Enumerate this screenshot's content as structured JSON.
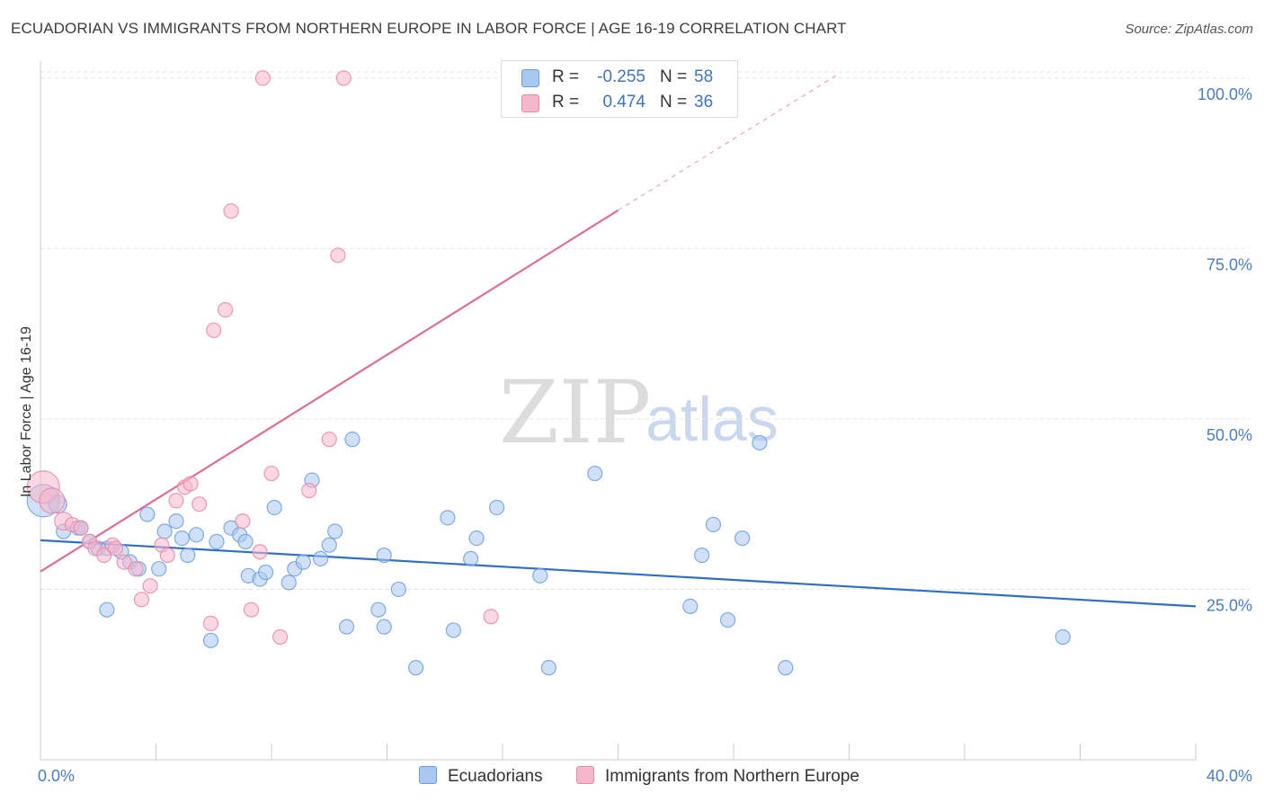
{
  "title": "ECUADORIAN VS IMMIGRANTS FROM NORTHERN EUROPE IN LABOR FORCE | AGE 16-19 CORRELATION CHART",
  "source": "Source: ZipAtlas.com",
  "watermark": {
    "zip": "ZIP",
    "atlas": "atlas"
  },
  "legend": {
    "rows": [
      {
        "r_label": "R =",
        "r_value": "-0.255",
        "n_label": "N =",
        "n_value": "58",
        "color": "#a9c8f0"
      },
      {
        "r_label": "R =",
        "r_value": "0.474",
        "n_label": "N =",
        "n_value": "36",
        "color": "#f6b7cb"
      }
    ]
  },
  "bottom_legend": [
    {
      "label": "Ecuadorians",
      "color": "#a9c8f0"
    },
    {
      "label": "Immigrants from Northern Europe",
      "color": "#f6b7cb"
    }
  ],
  "chart_data": {
    "type": "scatter",
    "ylabel": "In Labor Force | Age 16-19",
    "xlim": [
      0,
      40
    ],
    "ylim": [
      0,
      100
    ],
    "x_tick_labels": [
      "0.0%",
      "40.0%"
    ],
    "y_ticks": [
      25,
      50,
      75,
      100
    ],
    "y_tick_labels": [
      "25.0%",
      "50.0%",
      "75.0%",
      "100.0%"
    ],
    "grid": true,
    "series": [
      {
        "name": "Ecuadorians",
        "color": "#6b9de0",
        "fill": "#a9c8f0",
        "trend": {
          "x0": 0,
          "y0": 32.2,
          "x1": 40,
          "y1": 22.5
        },
        "points": [
          [
            0.1,
            38,
            18
          ],
          [
            0.6,
            37.5,
            10
          ],
          [
            0.8,
            33.5,
            8
          ],
          [
            1.3,
            34,
            8
          ],
          [
            1.4,
            34,
            8
          ],
          [
            1.7,
            32,
            8
          ],
          [
            2.0,
            31,
            8
          ],
          [
            2.3,
            31,
            8
          ],
          [
            2.8,
            30.5,
            8
          ],
          [
            3.1,
            29,
            8
          ],
          [
            2.3,
            22,
            8
          ],
          [
            3.4,
            28,
            8
          ],
          [
            3.7,
            36,
            8
          ],
          [
            4.1,
            28,
            8
          ],
          [
            4.3,
            33.5,
            8
          ],
          [
            4.7,
            35,
            8
          ],
          [
            4.9,
            32.5,
            8
          ],
          [
            5.1,
            30,
            8
          ],
          [
            5.4,
            33,
            8
          ],
          [
            5.9,
            17.5,
            8
          ],
          [
            6.1,
            32,
            8
          ],
          [
            6.6,
            34,
            8
          ],
          [
            6.9,
            33,
            8
          ],
          [
            7.1,
            32,
            8
          ],
          [
            7.2,
            27,
            8
          ],
          [
            7.6,
            26.5,
            8
          ],
          [
            7.8,
            27.5,
            8
          ],
          [
            8.1,
            37,
            8
          ],
          [
            8.6,
            26,
            8
          ],
          [
            8.8,
            28,
            8
          ],
          [
            9.1,
            29,
            8
          ],
          [
            9.4,
            41,
            8
          ],
          [
            9.7,
            29.5,
            8
          ],
          [
            10.0,
            31.5,
            8
          ],
          [
            10.2,
            33.5,
            8
          ],
          [
            10.6,
            19.5,
            8
          ],
          [
            10.8,
            47,
            8
          ],
          [
            11.9,
            30,
            8
          ],
          [
            11.7,
            22,
            8
          ],
          [
            11.9,
            19.5,
            8
          ],
          [
            12.4,
            25,
            8
          ],
          [
            13.0,
            13.5,
            8
          ],
          [
            14.1,
            35.5,
            8
          ],
          [
            14.3,
            19,
            8
          ],
          [
            14.9,
            29.5,
            8
          ],
          [
            15.1,
            32.5,
            8
          ],
          [
            15.8,
            37,
            8
          ],
          [
            17.3,
            27,
            8
          ],
          [
            17.6,
            13.5,
            8
          ],
          [
            19.2,
            42,
            8
          ],
          [
            22.5,
            22.5,
            8
          ],
          [
            22.9,
            30,
            8
          ],
          [
            23.3,
            34.5,
            8
          ],
          [
            23.8,
            20.5,
            8
          ],
          [
            24.3,
            32.5,
            8
          ],
          [
            24.9,
            46.5,
            8
          ],
          [
            25.8,
            13.5,
            8
          ],
          [
            35.4,
            18,
            8
          ]
        ]
      },
      {
        "name": "Immigrants from Northern Europe",
        "color": "#e98aa8",
        "fill": "#f6b7cb",
        "trend": {
          "x0": 0,
          "y0": 27.6,
          "x1": 20,
          "y1": 80.6,
          "x_dash_end": 27.6,
          "y_dash_end": 100.5
        },
        "points": [
          [
            0.1,
            40,
            18
          ],
          [
            0.4,
            38,
            14
          ],
          [
            0.8,
            35,
            10
          ],
          [
            1.1,
            34.5,
            8
          ],
          [
            1.4,
            34,
            8
          ],
          [
            1.7,
            32,
            8
          ],
          [
            1.9,
            31,
            8
          ],
          [
            2.2,
            30,
            8
          ],
          [
            2.5,
            31.5,
            8
          ],
          [
            2.9,
            29,
            8
          ],
          [
            3.3,
            28,
            8
          ],
          [
            3.5,
            23.5,
            8
          ],
          [
            3.8,
            25.5,
            8
          ],
          [
            4.2,
            31.5,
            8
          ],
          [
            4.4,
            30,
            8
          ],
          [
            4.7,
            38,
            8
          ],
          [
            5.0,
            40,
            8
          ],
          [
            5.2,
            40.5,
            8
          ],
          [
            5.5,
            37.5,
            8
          ],
          [
            5.9,
            20,
            8
          ],
          [
            6.0,
            63,
            8
          ],
          [
            6.4,
            66,
            8
          ],
          [
            6.6,
            80.5,
            8
          ],
          [
            7.0,
            35,
            8
          ],
          [
            7.3,
            22,
            8
          ],
          [
            7.6,
            30.5,
            8
          ],
          [
            8.0,
            42,
            8
          ],
          [
            8.3,
            18,
            8
          ],
          [
            9.3,
            39.5,
            8
          ],
          [
            10.0,
            47,
            8
          ],
          [
            10.3,
            74,
            8
          ],
          [
            10.5,
            100,
            8
          ],
          [
            15.6,
            21,
            8
          ],
          [
            18.0,
            100,
            8
          ],
          [
            7.7,
            100,
            8
          ],
          [
            2.6,
            31,
            8
          ]
        ]
      }
    ]
  }
}
